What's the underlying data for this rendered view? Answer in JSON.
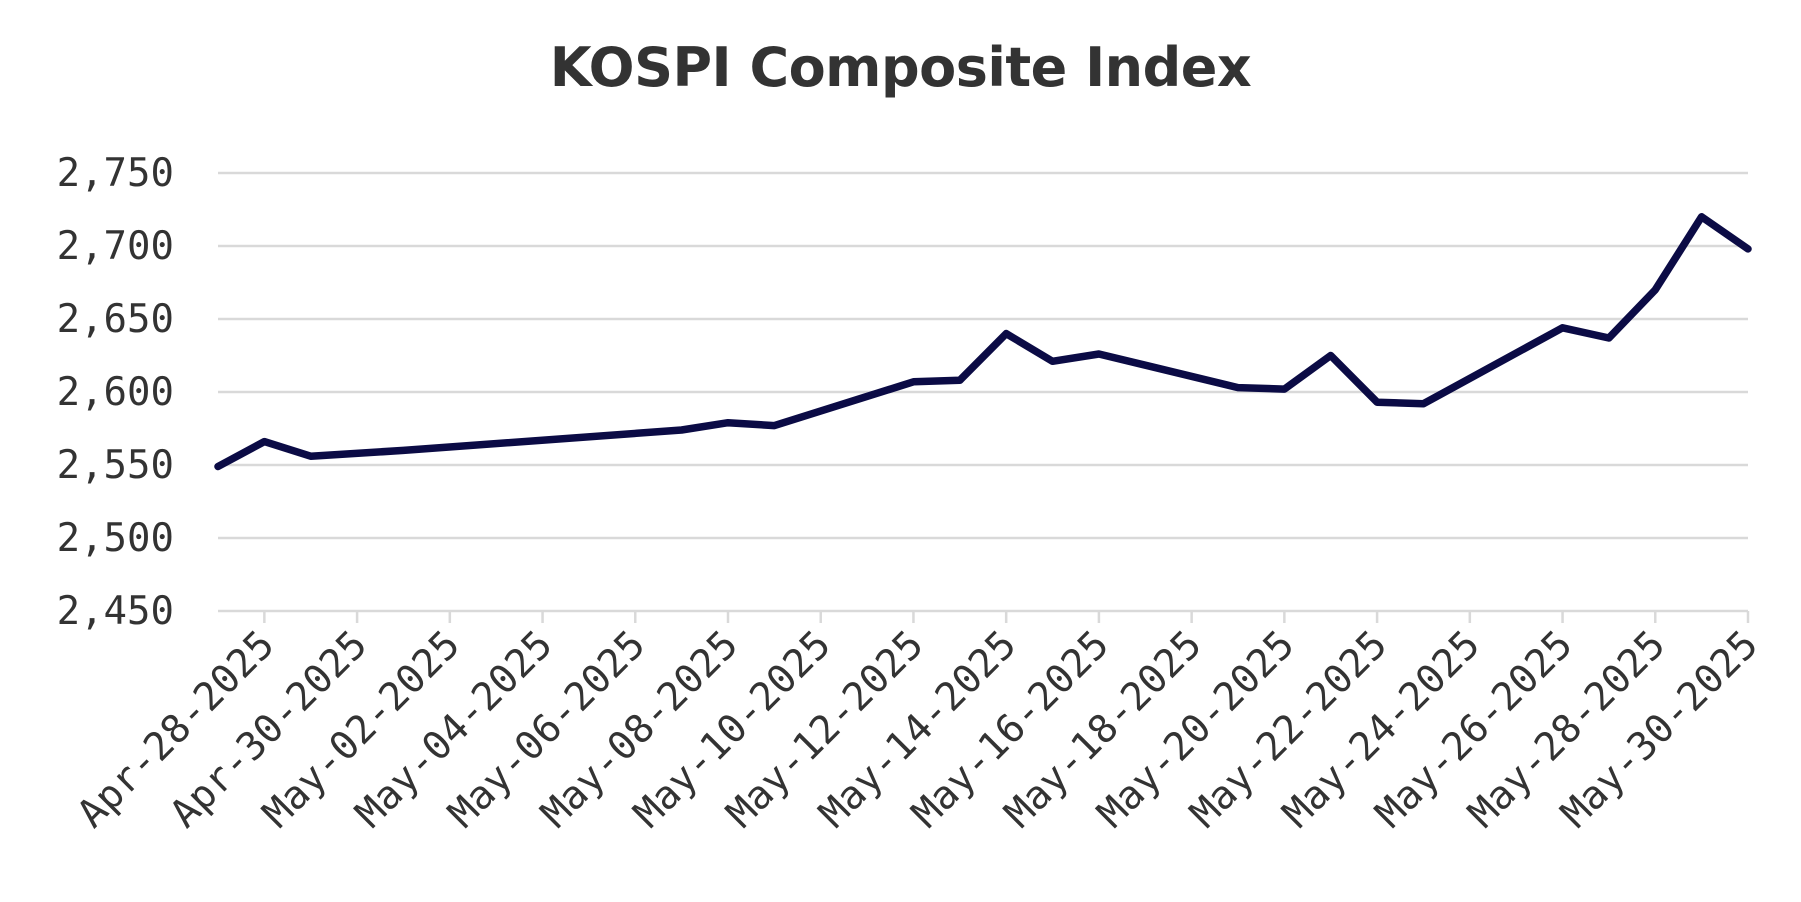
{
  "chart_data": {
    "type": "line",
    "title": "KOSPI Composite Index",
    "xlabel": "",
    "ylabel": "",
    "ylim": [
      2450,
      2750
    ],
    "y_ticks": [
      "2,450",
      "2,500",
      "2,550",
      "2,600",
      "2,650",
      "2,700",
      "2,750"
    ],
    "y_tick_values": [
      2450,
      2500,
      2550,
      2600,
      2650,
      2700,
      2750
    ],
    "x_range": [
      "2025-04-27",
      "2025-05-30"
    ],
    "x_ticks": [
      "Apr-28-2025",
      "Apr-30-2025",
      "May-02-2025",
      "May-04-2025",
      "May-06-2025",
      "May-08-2025",
      "May-10-2025",
      "May-12-2025",
      "May-14-2025",
      "May-16-2025",
      "May-18-2025",
      "May-20-2025",
      "May-22-2025",
      "May-24-2025",
      "May-26-2025",
      "May-28-2025",
      "May-30-2025"
    ],
    "x_tick_dates": [
      "2025-04-28",
      "2025-04-30",
      "2025-05-02",
      "2025-05-04",
      "2025-05-06",
      "2025-05-08",
      "2025-05-10",
      "2025-05-12",
      "2025-05-14",
      "2025-05-16",
      "2025-05-18",
      "2025-05-20",
      "2025-05-22",
      "2025-05-24",
      "2025-05-26",
      "2025-05-28",
      "2025-05-30"
    ],
    "grid": true,
    "legend": "none",
    "color": "#0b0b45",
    "series": [
      {
        "x": [
          "2025-04-27",
          "2025-04-28",
          "2025-04-29",
          "2025-05-01",
          "2025-05-07",
          "2025-05-08",
          "2025-05-09",
          "2025-05-12",
          "2025-05-13",
          "2025-05-14",
          "2025-05-15",
          "2025-05-16",
          "2025-05-19",
          "2025-05-20",
          "2025-05-21",
          "2025-05-22",
          "2025-05-23",
          "2025-05-26",
          "2025-05-27",
          "2025-05-28",
          "2025-05-29",
          "2025-05-30"
        ],
        "values": [
          2549,
          2566,
          2556,
          2560,
          2574,
          2579,
          2577,
          2607,
          2608,
          2640,
          2621,
          2626,
          2603,
          2602,
          2625,
          2593,
          2592,
          2644,
          2637,
          2670,
          2720,
          2698
        ]
      }
    ]
  }
}
